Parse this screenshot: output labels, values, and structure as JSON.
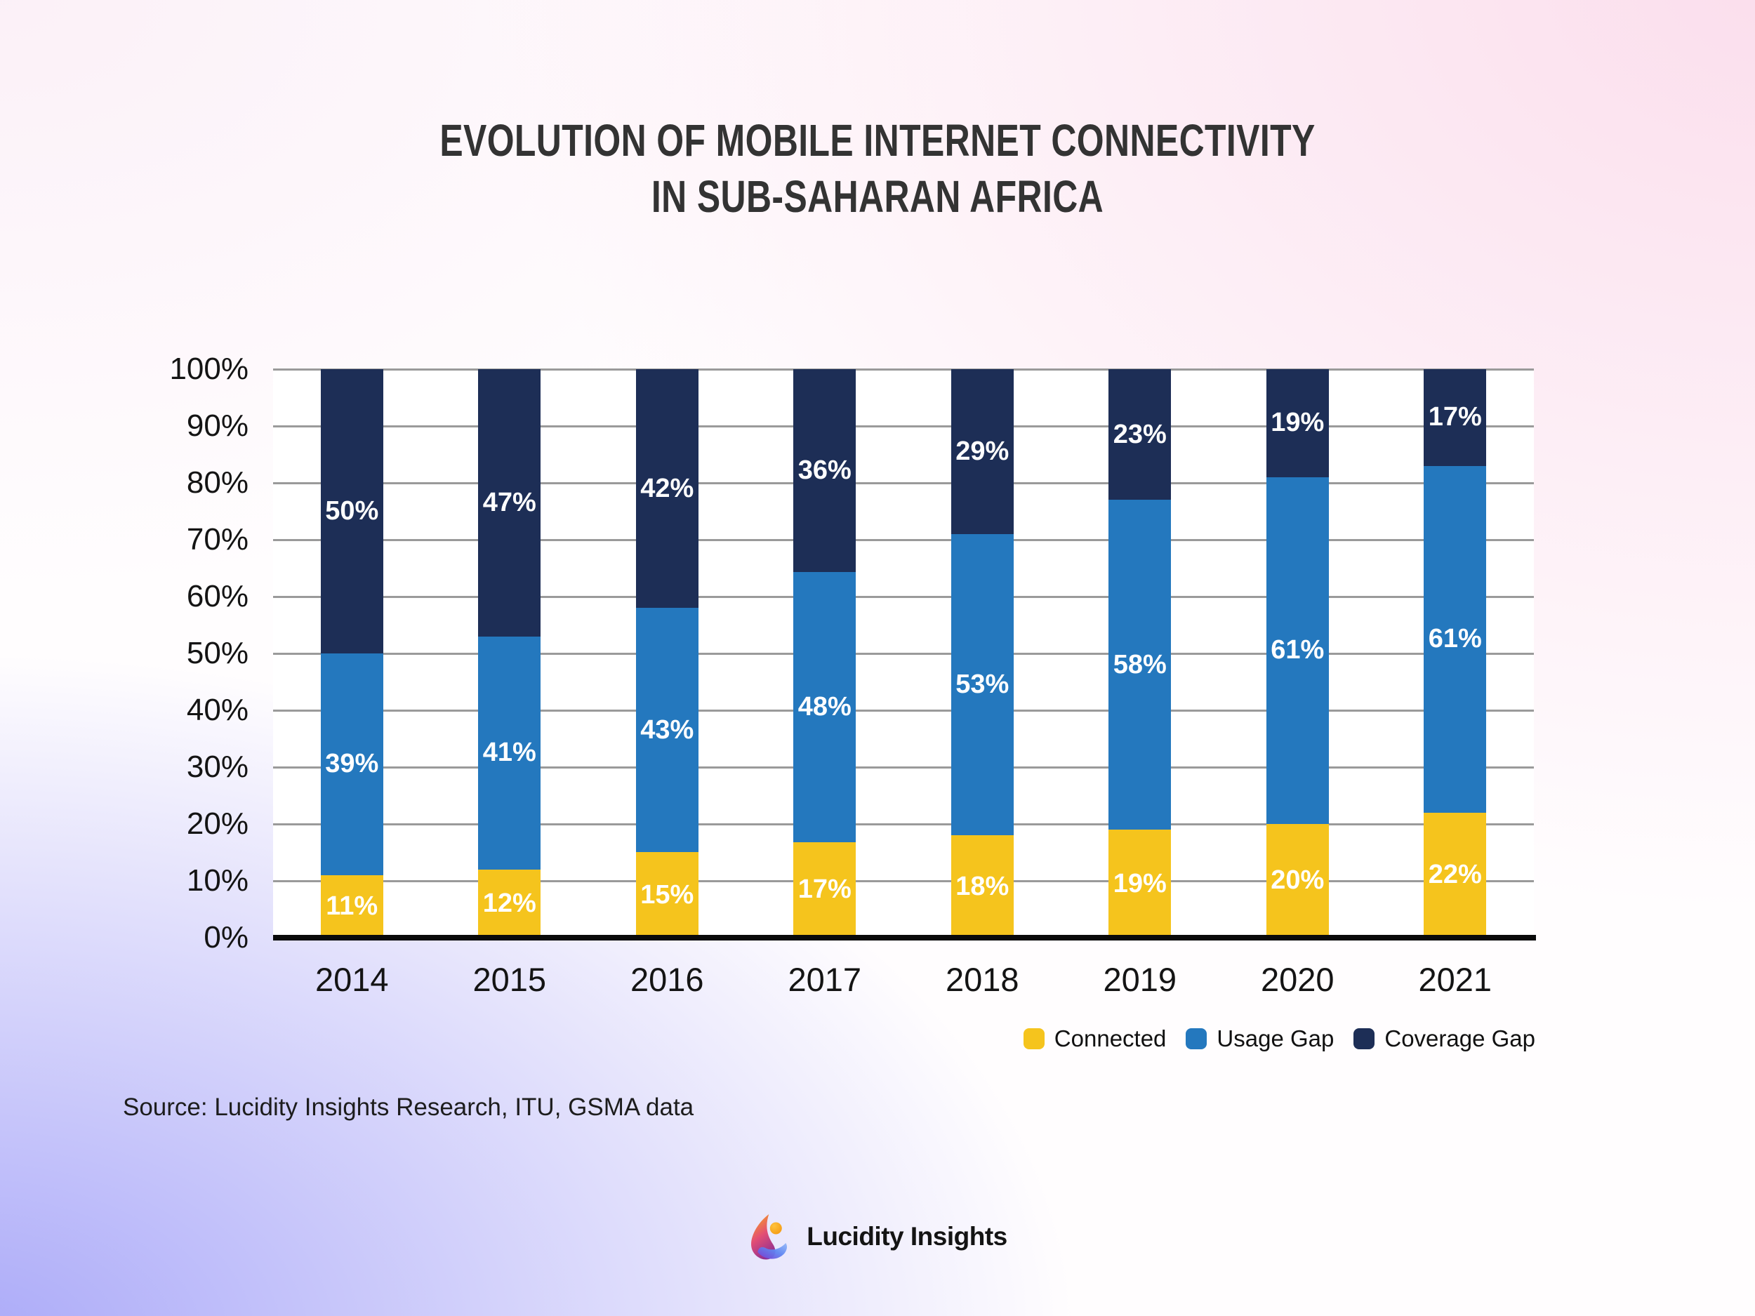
{
  "title": {
    "line1": "EVOLUTION OF MOBILE INTERNET CONNECTIVITY",
    "line2": "IN SUB-SAHARAN AFRICA"
  },
  "chart_data": {
    "type": "bar",
    "stacked": true,
    "title": "EVOLUTION OF MOBILE INTERNET CONNECTIVITY IN SUB-SAHARAN AFRICA",
    "categories": [
      "2014",
      "2015",
      "2016",
      "2017",
      "2018",
      "2019",
      "2020",
      "2021"
    ],
    "series": [
      {
        "name": "Connected",
        "color": "#F5C41D",
        "values": [
          11,
          12,
          15,
          17,
          18,
          19,
          20,
          22
        ]
      },
      {
        "name": "Usage Gap",
        "color": "#2478BE",
        "values": [
          39,
          41,
          43,
          48,
          53,
          58,
          61,
          61
        ]
      },
      {
        "name": "Coverage Gap",
        "color": "#1D2E56",
        "values": [
          50,
          47,
          42,
          36,
          29,
          23,
          19,
          17
        ]
      }
    ],
    "value_suffix": "%",
    "bar_label_color": "#FFFFFF",
    "y_axis": {
      "min": 0,
      "max": 100,
      "ticks": [
        "100%",
        "90%",
        "80%",
        "70%",
        "60%",
        "50%",
        "40%",
        "30%",
        "20%",
        "10%",
        "0%"
      ]
    },
    "grid": true,
    "legend_position": "bottom-right"
  },
  "source": "Source: Lucidity Insights Research, ITU, GSMA data",
  "logo": {
    "text": "Lucidity Insights"
  }
}
